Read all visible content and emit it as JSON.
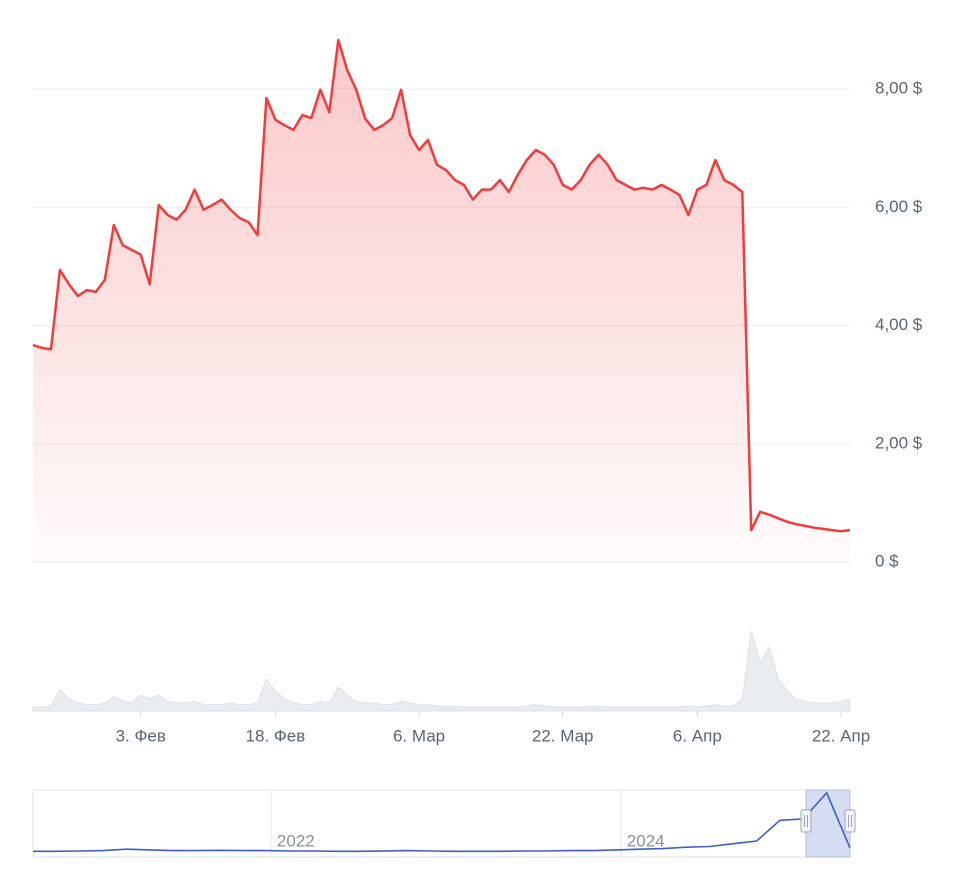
{
  "chart_data": [
    {
      "type": "line",
      "x": [
        "01-22",
        "01-23",
        "01-24",
        "01-25",
        "01-26",
        "01-27",
        "01-28",
        "01-29",
        "01-30",
        "01-31",
        "02-01",
        "02-02",
        "02-03",
        "02-04",
        "02-05",
        "02-06",
        "02-07",
        "02-08",
        "02-09",
        "02-10",
        "02-11",
        "02-12",
        "02-13",
        "02-14",
        "02-15",
        "02-16",
        "02-17",
        "02-18",
        "02-19",
        "02-20",
        "02-21",
        "02-22",
        "02-23",
        "02-24",
        "02-25",
        "02-26",
        "02-27",
        "02-28",
        "03-01",
        "03-02",
        "03-03",
        "03-04",
        "03-05",
        "03-06",
        "03-07",
        "03-08",
        "03-09",
        "03-10",
        "03-11",
        "03-12",
        "03-13",
        "03-14",
        "03-15",
        "03-16",
        "03-17",
        "03-18",
        "03-19",
        "03-20",
        "03-21",
        "03-22",
        "03-23",
        "03-24",
        "03-25",
        "03-26",
        "03-27",
        "03-28",
        "03-29",
        "03-30",
        "03-31",
        "04-01",
        "04-02",
        "04-03",
        "04-04",
        "04-05",
        "04-06",
        "04-07",
        "04-08",
        "04-09",
        "04-10",
        "04-11",
        "04-12",
        "04-13",
        "04-14",
        "04-15",
        "04-16",
        "04-17",
        "04-18",
        "04-19",
        "04-20",
        "04-21",
        "04-22",
        "04-23"
      ],
      "series": [
        {
          "color": "#f03c3c",
          "values": [
            3.67,
            3.62,
            3.6,
            4.94,
            4.7,
            4.5,
            4.6,
            4.57,
            4.77,
            5.7,
            5.36,
            5.28,
            5.2,
            4.7,
            6.04,
            5.87,
            5.79,
            5.96,
            6.3,
            5.96,
            6.04,
            6.13,
            5.96,
            5.82,
            5.75,
            5.53,
            7.85,
            7.48,
            7.39,
            7.31,
            7.56,
            7.51,
            7.99,
            7.61,
            8.83,
            8.32,
            7.99,
            7.5,
            7.31,
            7.39,
            7.51,
            7.99,
            7.22,
            6.97,
            7.14,
            6.72,
            6.63,
            6.46,
            6.38,
            6.13,
            6.3,
            6.3,
            6.46,
            6.26,
            6.55,
            6.8,
            6.97,
            6.89,
            6.72,
            6.38,
            6.3,
            6.46,
            6.72,
            6.89,
            6.72,
            6.46,
            6.38,
            6.3,
            6.33,
            6.3,
            6.38,
            6.3,
            6.21,
            5.87,
            6.3,
            6.38,
            6.8,
            6.46,
            6.38,
            6.26,
            0.54,
            0.85,
            0.8,
            0.74,
            0.68,
            0.64,
            0.61,
            0.58,
            0.56,
            0.54,
            0.52,
            0.54
          ]
        }
      ],
      "volume": {
        "color": "#e9ecf1",
        "vlim": [
          0,
          100
        ],
        "values": [
          5,
          5,
          6,
          27,
          15,
          10,
          8,
          8,
          10,
          18,
          12,
          10,
          20,
          15,
          20,
          12,
          10,
          10,
          12,
          8,
          8,
          8,
          10,
          8,
          8,
          10,
          40,
          25,
          15,
          10,
          8,
          8,
          12,
          10,
          30,
          20,
          12,
          10,
          10,
          8,
          8,
          12,
          10,
          8,
          8,
          6,
          6,
          6,
          5,
          5,
          5,
          5,
          5,
          5,
          5,
          6,
          8,
          6,
          5,
          5,
          5,
          5,
          6,
          6,
          5,
          5,
          5,
          5,
          5,
          5,
          5,
          5,
          5,
          6,
          5,
          6,
          8,
          6,
          6,
          15,
          100,
          60,
          80,
          40,
          25,
          15,
          12,
          10,
          10,
          10,
          12,
          15
        ]
      },
      "xlim": [
        "01-22",
        "04-23"
      ],
      "xticks": [
        {
          "value": "02-03",
          "label": "3. Фев"
        },
        {
          "value": "02-18",
          "label": "18. Фев"
        },
        {
          "value": "03-06",
          "label": "6. Мар"
        },
        {
          "value": "03-22",
          "label": "22. Мар"
        },
        {
          "value": "04-06",
          "label": "6. Апр"
        },
        {
          "value": "04-22",
          "label": "22. Апр"
        }
      ],
      "ylim": [
        0,
        9
      ],
      "yticks": [
        {
          "value": 0,
          "label": "0 $"
        },
        {
          "value": 2,
          "label": "2,00 $"
        },
        {
          "value": 4,
          "label": "4,00 $"
        },
        {
          "value": 6,
          "label": "6,00 $"
        },
        {
          "value": 8,
          "label": "8,00 $"
        }
      ],
      "grid": true
    },
    {
      "type": "line",
      "series": [
        {
          "color": "#3f5fc0",
          "values": [
            0.1,
            0.1,
            0.15,
            0.2,
            0.4,
            0.3,
            0.2,
            0.2,
            0.25,
            0.2,
            0.2,
            0.15,
            0.15,
            0.1,
            0.1,
            0.15,
            0.2,
            0.15,
            0.1,
            0.1,
            0.1,
            0.15,
            0.15,
            0.2,
            0.2,
            0.3,
            0.4,
            0.5,
            0.7,
            0.8,
            1.2,
            1.6,
            4.6,
            4.8,
            8.6,
            0.6
          ]
        }
      ],
      "xlim": [
        2020.64,
        2025.31
      ],
      "xticks": [
        2022,
        2024
      ],
      "ylim": [
        0,
        9
      ],
      "grid": true
    }
  ]
}
